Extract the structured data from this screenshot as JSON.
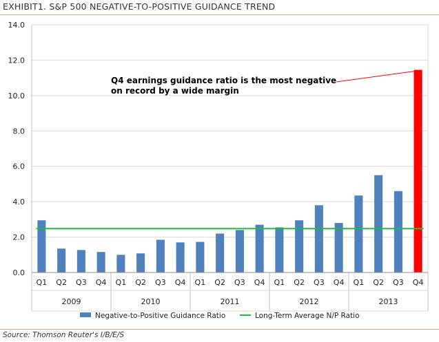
{
  "header": {
    "title": "EXHIBIT1. S&P 500 NEGATIVE-TO-POSITIVE GUIDANCE TREND"
  },
  "footer": {
    "source": "Source: Thomson Reuter's I/B/E/S"
  },
  "colors": {
    "bar": "#4f81bd",
    "highlight": "#ff0000",
    "average_line": "#1ebd3c",
    "annotation_line": "#ff0000"
  },
  "chart_data": {
    "type": "bar",
    "title": "S&P 500 NEGATIVE-TO-POSITIVE GUIDANCE TREND",
    "categories": [
      "Q1",
      "Q2",
      "Q3",
      "Q4",
      "Q1",
      "Q2",
      "Q3",
      "Q4",
      "Q1",
      "Q2",
      "Q3",
      "Q4",
      "Q1",
      "Q2",
      "Q3",
      "Q4",
      "Q1",
      "Q2",
      "Q3",
      "Q4"
    ],
    "year_groups": [
      {
        "label": "2009",
        "count": 4
      },
      {
        "label": "2010",
        "count": 4
      },
      {
        "label": "2011",
        "count": 4
      },
      {
        "label": "2012",
        "count": 4
      },
      {
        "label": "2013",
        "count": 4
      }
    ],
    "series": [
      {
        "name": "Negative-to-Positive Guidance Ratio",
        "values": [
          2.95,
          1.35,
          1.27,
          1.16,
          1.0,
          1.08,
          1.85,
          1.7,
          1.73,
          2.2,
          2.4,
          2.7,
          2.55,
          2.95,
          3.8,
          2.8,
          4.35,
          5.5,
          4.6,
          11.45
        ],
        "highlight_index": 19
      },
      {
        "name": "Long-Term Average N/P Ratio",
        "type": "line",
        "value": 2.48
      }
    ],
    "ylim": [
      0,
      14
    ],
    "yticks": [
      "0.0",
      "2.0",
      "4.0",
      "6.0",
      "8.0",
      "10.0",
      "12.0",
      "14.0"
    ],
    "xlabel": "",
    "ylabel": "",
    "grid": "horizontal",
    "legend": "bottom",
    "annotation": {
      "lines": [
        "Q4 earnings guidance ratio is the most negative",
        "on record by a wide margin"
      ],
      "target_index": 19
    }
  }
}
